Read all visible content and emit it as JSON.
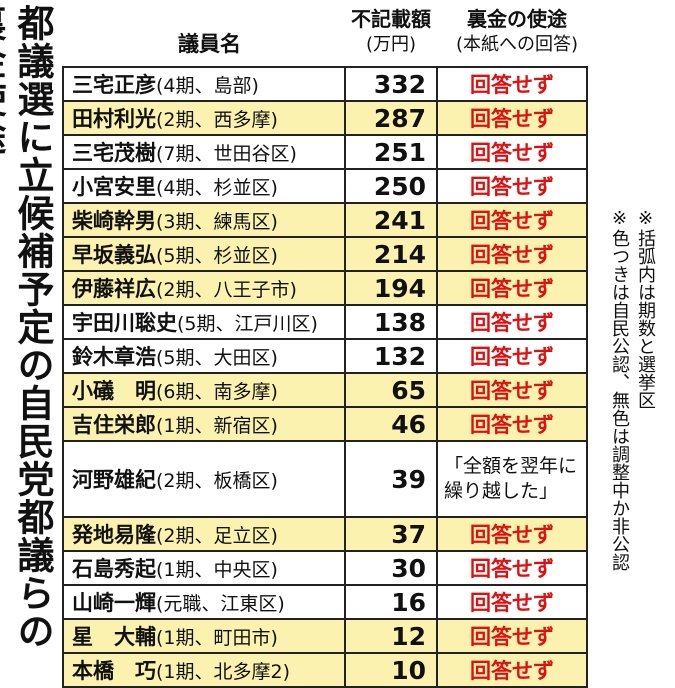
{
  "title": "都議選に立候補予定の自民党都議らの裏金使途",
  "notes": [
    "※括弧内は期数と選挙区",
    "※色つきは自民公認、無色は調整中か非公認"
  ],
  "header": {
    "name": "議員名",
    "amount": "不記載額",
    "amount_unit": "(万円)",
    "use": "裏金の使途",
    "use_sub": "(本紙への回答)"
  },
  "colors": {
    "kouni_row": "#fbf2b0",
    "answer_red": "#e01010"
  },
  "rows": [
    {
      "name": "三宅正彦",
      "info": "(4期、島部)",
      "amount": "332",
      "use": "回答せず",
      "kouni": false
    },
    {
      "name": "田村利光",
      "info": "(2期、西多摩)",
      "amount": "287",
      "use": "回答せず",
      "kouni": true
    },
    {
      "name": "三宅茂樹",
      "info": "(7期、世田谷区)",
      "amount": "251",
      "use": "回答せず",
      "kouni": false
    },
    {
      "name": "小宮安里",
      "info": "(4期、杉並区)",
      "amount": "250",
      "use": "回答せず",
      "kouni": false
    },
    {
      "name": "柴崎幹男",
      "info": "(3期、練馬区)",
      "amount": "241",
      "use": "回答せず",
      "kouni": true
    },
    {
      "name": "早坂義弘",
      "info": "(5期、杉並区)",
      "amount": "214",
      "use": "回答せず",
      "kouni": true
    },
    {
      "name": "伊藤祥広",
      "info": "(2期、八王子市)",
      "amount": "194",
      "use": "回答せず",
      "kouni": true
    },
    {
      "name": "宇田川聡史",
      "info": "(5期、江戸川区)",
      "amount": "138",
      "use": "回答せず",
      "kouni": false
    },
    {
      "name": "鈴木章浩",
      "info": "(5期、大田区)",
      "amount": "132",
      "use": "回答せず",
      "kouni": false
    },
    {
      "name": "小礒　明",
      "info": "(6期、南多摩)",
      "amount": "65",
      "use": "回答せず",
      "kouni": true
    },
    {
      "name": "吉住栄郎",
      "info": "(1期、新宿区)",
      "amount": "46",
      "use": "回答せず",
      "kouni": true
    },
    {
      "name": "河野雄紀",
      "info": "(2期、板橋区)",
      "amount": "39",
      "use": "「全額を翌年に繰り越した」",
      "kouni": false
    },
    {
      "name": "発地易隆",
      "info": "(2期、足立区)",
      "amount": "37",
      "use": "回答せず",
      "kouni": true
    },
    {
      "name": "石島秀起",
      "info": "(1期、中央区)",
      "amount": "30",
      "use": "回答せず",
      "kouni": false
    },
    {
      "name": "山崎一輝",
      "info": "(元職、江東区)",
      "amount": "16",
      "use": "回答せず",
      "kouni": false
    },
    {
      "name": "星　大輔",
      "info": "(1期、町田市)",
      "amount": "12",
      "use": "回答せず",
      "kouni": true
    },
    {
      "name": "本橋　巧",
      "info": "(1期、北多摩2)",
      "amount": "10",
      "use": "回答せず",
      "kouni": true
    }
  ]
}
